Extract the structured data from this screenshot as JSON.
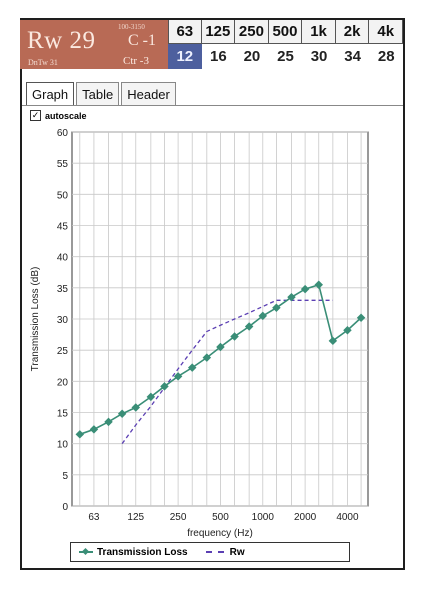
{
  "rating": {
    "rw_label": "Rw 29",
    "sub_label": "DnTw 31",
    "range_label": "100-3150",
    "c_label": "C -1",
    "ctr_label": "Ctr -3",
    "box_color": "#b86a55"
  },
  "bands": {
    "headers": [
      "63",
      "125",
      "250",
      "500",
      "1k",
      "2k",
      "4k"
    ],
    "values": [
      "12",
      "16",
      "20",
      "25",
      "30",
      "34",
      "28"
    ],
    "selected_index": 0,
    "selected_color": "#4d5f9e"
  },
  "tabs": [
    {
      "label": "Graph",
      "active": true
    },
    {
      "label": "Table",
      "active": false
    },
    {
      "label": "Header",
      "active": false
    }
  ],
  "autoscale": {
    "label": "autoscale",
    "checked": true,
    "check_glyph": "✓"
  },
  "chart_data": {
    "type": "line",
    "xlabel": "frequency (Hz)",
    "ylabel": "Transmission Loss (dB)",
    "x_ticks": [
      "63",
      "125",
      "250",
      "500",
      "1000",
      "2000",
      "4000"
    ],
    "y_ticks": [
      "0",
      "5",
      "10",
      "15",
      "20",
      "25",
      "30",
      "35",
      "40",
      "45",
      "50",
      "55",
      "60"
    ],
    "ylim": [
      0,
      60
    ],
    "x_scale": "log",
    "grid": true,
    "legend_position": "bottom",
    "series": [
      {
        "name": "Transmission Loss",
        "style": "solid-markers",
        "color": "#3a8e77",
        "x": [
          50,
          63,
          80,
          100,
          125,
          160,
          200,
          250,
          315,
          400,
          500,
          630,
          800,
          1000,
          1250,
          1600,
          2000,
          2500,
          3150,
          4000,
          5000
        ],
        "y": [
          11.5,
          12.3,
          13.5,
          14.8,
          15.8,
          17.5,
          19.2,
          20.8,
          22.2,
          23.8,
          25.5,
          27.2,
          28.8,
          30.5,
          31.8,
          33.5,
          34.8,
          35.5,
          26.5,
          28.2,
          30.2
        ]
      },
      {
        "name": "Rw",
        "style": "dashed",
        "color": "#5b3fb3",
        "x": [
          100,
          125,
          160,
          200,
          250,
          315,
          400,
          500,
          630,
          800,
          1000,
          1250,
          1600,
          2000,
          2500,
          3150
        ],
        "y": [
          10,
          13,
          16,
          19,
          22,
          25,
          28,
          29,
          30,
          31,
          32,
          33,
          33,
          33,
          33,
          33
        ]
      }
    ]
  }
}
